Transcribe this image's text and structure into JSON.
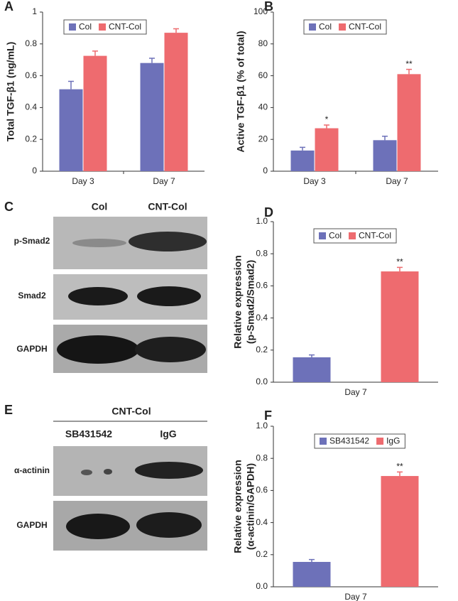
{
  "chart_data": [
    {
      "type": "bar",
      "panel": "A",
      "ylabel": "Total TGF-β1 (ng/mL)",
      "categories": [
        "Day 3",
        "Day 7"
      ],
      "series": [
        {
          "name": "Col",
          "color": "#6d71b9",
          "values": [
            0.515,
            0.68
          ],
          "errors": [
            0.05,
            0.03
          ]
        },
        {
          "name": "CNT-Col",
          "color": "#ee6b6f",
          "values": [
            0.725,
            0.87
          ],
          "errors": [
            0.03,
            0.025
          ]
        }
      ],
      "ylim": [
        0,
        1
      ],
      "yticks": [
        0,
        0.2,
        0.4,
        0.6,
        0.8,
        1
      ]
    },
    {
      "type": "bar",
      "panel": "B",
      "ylabel": "Active TGF-β1 (% of total)",
      "categories": [
        "Day 3",
        "Day 7"
      ],
      "series": [
        {
          "name": "Col",
          "color": "#6d71b9",
          "values": [
            13,
            19.5
          ],
          "errors": [
            2,
            2.5
          ]
        },
        {
          "name": "CNT-Col",
          "color": "#ee6b6f",
          "values": [
            27,
            61
          ],
          "errors": [
            2,
            3
          ],
          "significance": [
            "*",
            "**"
          ]
        }
      ],
      "ylim": [
        0,
        100
      ],
      "yticks": [
        0,
        20,
        40,
        60,
        80,
        100
      ]
    },
    {
      "type": "bar",
      "panel": "D",
      "ylabel": [
        "Relative expression",
        "(p-Smad2/Smad2)"
      ],
      "categories": [
        "Day 7"
      ],
      "series": [
        {
          "name": "Col",
          "color": "#6d71b9",
          "values": [
            0.155
          ],
          "errors": [
            0.015
          ]
        },
        {
          "name": "CNT-Col",
          "color": "#ee6b6f",
          "values": [
            0.69
          ],
          "errors": [
            0.025
          ],
          "significance": [
            "**"
          ]
        }
      ],
      "ylim": [
        0,
        1
      ],
      "yticks": [
        {
          "value": 0,
          "label": "0.0"
        },
        0.2,
        0.4,
        0.6,
        0.8,
        {
          "value": 1,
          "label": "1.0"
        }
      ]
    },
    {
      "type": "bar",
      "panel": "F",
      "ylabel": [
        "Relative expression",
        "(α-actinin/GAPDH)"
      ],
      "categories": [
        "Day 7"
      ],
      "series": [
        {
          "name": "SB431542",
          "color": "#6d71b9",
          "values": [
            0.155
          ],
          "errors": [
            0.015
          ]
        },
        {
          "name": "IgG",
          "color": "#ee6b6f",
          "values": [
            0.69
          ],
          "errors": [
            0.025
          ],
          "significance": [
            "**"
          ]
        }
      ],
      "ylim": [
        0,
        1
      ],
      "yticks": [
        {
          "value": 0,
          "label": "0.0"
        },
        0.2,
        0.4,
        0.6,
        0.8,
        {
          "value": 1,
          "label": "1.0"
        }
      ]
    }
  ],
  "blots": [
    {
      "panel": "C",
      "columns": [
        "Col",
        "CNT-Col"
      ],
      "rows": [
        "p-Smad2",
        "Smad2",
        "GAPDH"
      ]
    },
    {
      "panel": "E",
      "group": "CNT-Col",
      "columns": [
        "SB431542",
        "IgG"
      ],
      "rows": [
        "α-actinin",
        "GAPDH"
      ]
    }
  ]
}
